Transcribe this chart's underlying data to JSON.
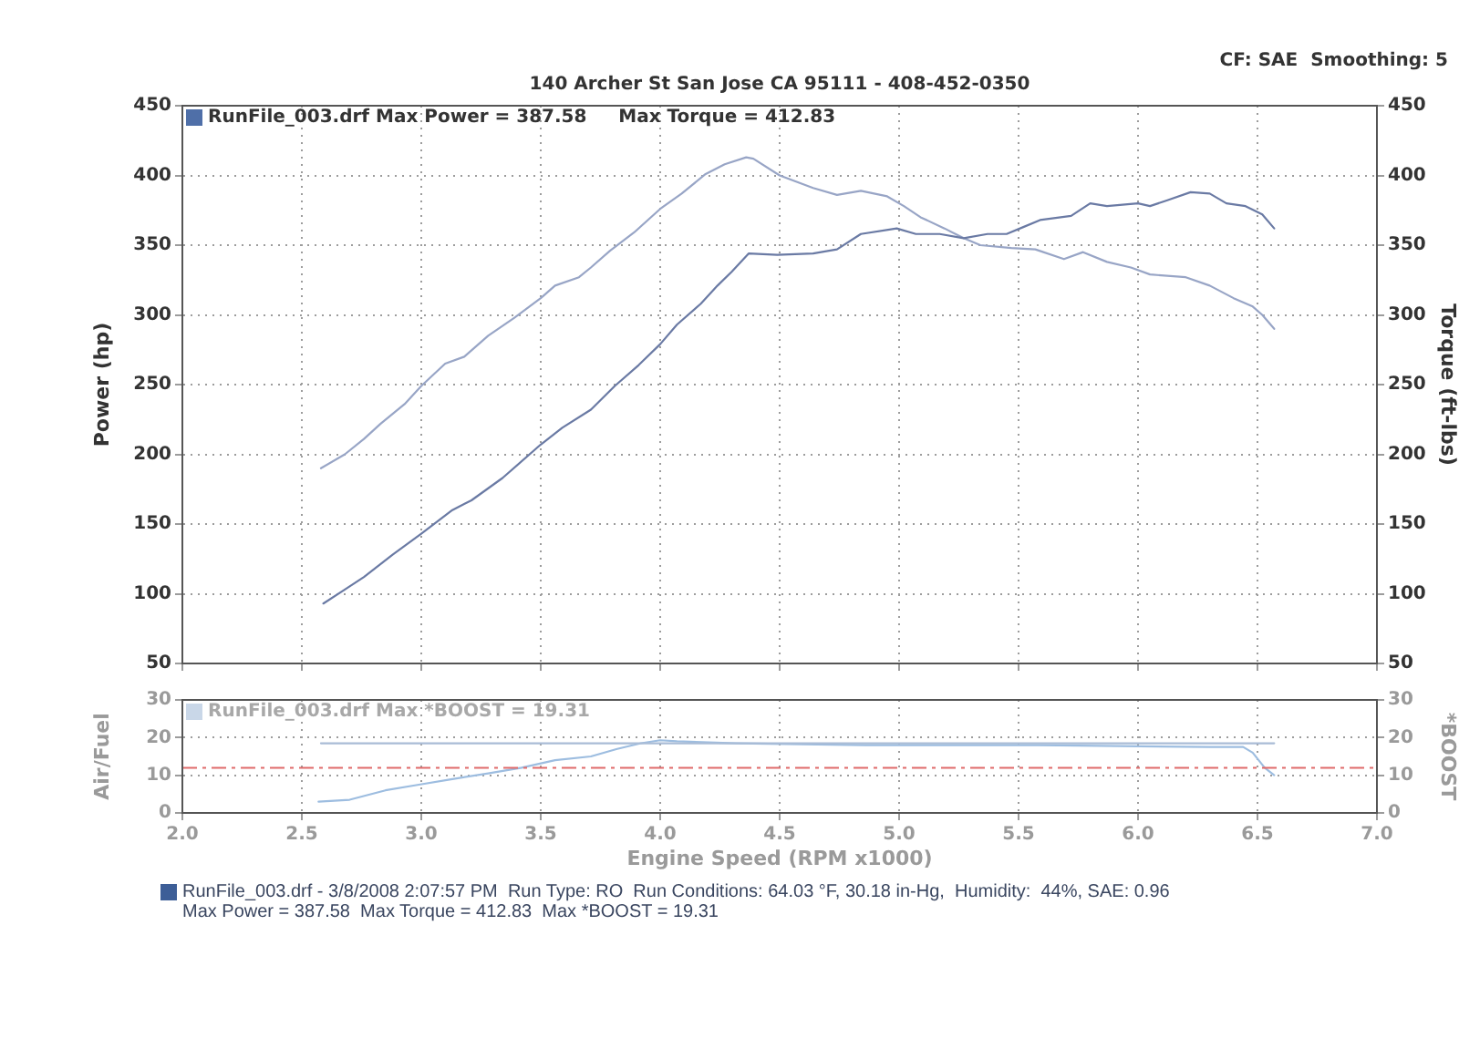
{
  "chart_data": [
    {
      "type": "line",
      "subtitle": "140 Archer St San Jose CA 95111 - 408-452-0350",
      "ylabel": "Power (hp)",
      "y2label": "Torque (ft-lbs)",
      "annotations": [
        "CF: SAE  Smoothing: 5",
        "RunFile_003.drf Max Power = 387.58     Max Torque = 412.83"
      ],
      "xlim": [
        2,
        7
      ],
      "xticks": [
        2,
        2.5,
        3,
        3.5,
        4,
        4.5,
        5,
        5.5,
        6,
        6.5,
        7
      ],
      "ylim": [
        50,
        450
      ],
      "yticks": [
        50,
        100,
        150,
        200,
        250,
        300,
        350,
        400,
        450
      ],
      "y2lim": [
        50,
        450
      ],
      "y2ticks": [
        50,
        100,
        150,
        200,
        250,
        300,
        350,
        400,
        450
      ],
      "grid": true,
      "tick_labels": "y",
      "marker": "none",
      "line_style": "solid",
      "series": [
        {
          "color": "#6a7aa4",
          "x": [
            2.59,
            2.68,
            2.76,
            2.88,
            3.0,
            3.13,
            3.21,
            3.34,
            3.5,
            3.59,
            3.71,
            3.81,
            3.91,
            4.0,
            4.07,
            4.17,
            4.24,
            4.3,
            4.37,
            4.49,
            4.64,
            4.74,
            4.84,
            4.99,
            5.07,
            5.17,
            5.27,
            5.37,
            5.45,
            5.52,
            5.59,
            5.72,
            5.8,
            5.87,
            6.0,
            6.05,
            6.12,
            6.22,
            6.3,
            6.37,
            6.45,
            6.52,
            6.57
          ],
          "values": [
            93,
            103,
            112,
            128,
            143,
            160,
            167,
            183,
            207,
            219,
            232,
            249,
            264,
            279,
            293,
            308,
            321,
            331,
            344,
            343,
            344,
            347,
            358,
            362,
            358,
            358,
            355,
            358,
            358,
            363,
            368,
            371,
            380,
            378,
            380,
            378,
            382,
            388,
            387,
            380,
            378,
            372,
            362
          ]
        },
        {
          "color": "#98a5c6",
          "axis": "y2",
          "x": [
            2.58,
            2.68,
            2.76,
            2.83,
            2.93,
            3.0,
            3.1,
            3.18,
            3.28,
            3.39,
            3.5,
            3.56,
            3.66,
            3.71,
            3.79,
            3.89,
            4.0,
            4.09,
            4.19,
            4.27,
            4.36,
            4.39,
            4.5,
            4.64,
            4.74,
            4.84,
            4.95,
            5.02,
            5.09,
            5.19,
            5.27,
            5.34,
            5.47,
            5.57,
            5.69,
            5.77,
            5.87,
            5.97,
            6.05,
            6.2,
            6.3,
            6.4,
            6.48,
            6.52,
            6.57
          ],
          "values": [
            190,
            200,
            211,
            222,
            236,
            249,
            265,
            270,
            285,
            298,
            312,
            321,
            327,
            334,
            346,
            359,
            376,
            387,
            401,
            408,
            413,
            412,
            400,
            391,
            386,
            389,
            385,
            378,
            370,
            362,
            355,
            350,
            348,
            347,
            340,
            345,
            338,
            334,
            329,
            327,
            321,
            312,
            306,
            300,
            290
          ]
        }
      ]
    },
    {
      "type": "line",
      "xlabel": "Engine Speed (RPM x1000)",
      "ylabel": "Air/Fuel",
      "y2label": "*BOOST",
      "annotations": [
        "RunFile_003.drf Max *BOOST = 19.31",
        "RunFile_003.drf - 3/8/2008 2:07:57 PM  Run Type: RO  Run Conditions: 64.03 °F, 30.18 in-Hg,  Humidity:  44%, SAE: 0.96",
        "Max Power = 387.58  Max Torque = 412.83  Max *BOOST = 19.31"
      ],
      "xlim": [
        2,
        7
      ],
      "xticks": [
        {
          "value": 2,
          "label": "2.0"
        },
        2.5,
        {
          "value": 3,
          "label": "3.0"
        },
        3.5,
        {
          "value": 4,
          "label": "4.0"
        },
        4.5,
        {
          "value": 5,
          "label": "5.0"
        },
        5.5,
        {
          "value": 6,
          "label": "6.0"
        },
        6.5,
        {
          "value": 7,
          "label": "7.0"
        }
      ],
      "ylim": [
        0,
        30
      ],
      "yticks": [
        0,
        10,
        20,
        30
      ],
      "y2lim": [
        0,
        30
      ],
      "y2ticks": [
        0,
        10,
        20,
        30
      ],
      "grid": true,
      "marker": "none",
      "line_style": "solid",
      "ref_lines": [
        {
          "axis": "y",
          "value": 12,
          "color": "#e06a6a",
          "line_style": "dashed"
        }
      ],
      "series": [
        {
          "color": "#a9bcd6",
          "x": [
            2.58,
            3.0,
            3.5,
            4.0,
            4.5,
            5.0,
            5.5,
            6.0,
            6.57
          ],
          "values": [
            18.5,
            18.5,
            18.5,
            18.5,
            18.5,
            18.5,
            18.5,
            18.5,
            18.5
          ]
        },
        {
          "color": "#9dbde0",
          "axis": "y2",
          "x": [
            2.57,
            2.7,
            2.85,
            2.99,
            3.13,
            3.28,
            3.42,
            3.56,
            3.71,
            3.82,
            3.92,
            4.0,
            4.07,
            4.32,
            4.86,
            5.58,
            6.3,
            6.44,
            6.48,
            6.53,
            6.57
          ],
          "values": [
            3,
            3.5,
            6,
            7.5,
            9,
            10.5,
            12,
            14,
            15,
            17,
            18.5,
            19.3,
            19,
            18.5,
            18,
            18,
            17.5,
            17.5,
            16,
            12,
            10
          ]
        }
      ]
    }
  ]
}
